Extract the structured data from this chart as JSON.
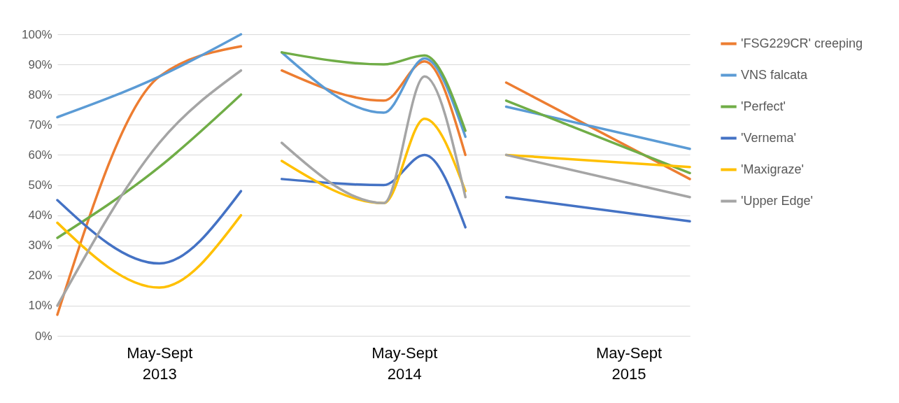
{
  "chart_data": {
    "type": "line",
    "categories": [
      null,
      null,
      null,
      null,
      null,
      "May-Sept 2013",
      null,
      null,
      null,
      null,
      null,
      null,
      null,
      null,
      null,
      null,
      null,
      "May-Sept 2014",
      null,
      null,
      null,
      null,
      null,
      null,
      null,
      null,
      null,
      null,
      "May-Sept 2015",
      null,
      null,
      null
    ],
    "ylim": [
      0,
      100
    ],
    "yticks": [
      {
        "value": 0,
        "label": "0%"
      },
      {
        "value": 10,
        "label": "10%"
      },
      {
        "value": 20,
        "label": "20%"
      },
      {
        "value": 30,
        "label": "30%"
      },
      {
        "value": 40,
        "label": "40%"
      },
      {
        "value": 50,
        "label": "50%"
      },
      {
        "value": 60,
        "label": "60%"
      },
      {
        "value": 70,
        "label": "70%"
      },
      {
        "value": 80,
        "label": "80%"
      },
      {
        "value": 90,
        "label": "90%"
      },
      {
        "value": 100,
        "label": "100%"
      }
    ],
    "grid": "y",
    "legend": "right",
    "line_style": "solid",
    "series": [
      {
        "name": "'FSG229CR' creeping",
        "color": "#ed7d31",
        "values": [
          7,
          null,
          null,
          null,
          null,
          86,
          null,
          null,
          null,
          96,
          null,
          null,
          null,
          null,
          null,
          null,
          null,
          null,
          null,
          null,
          null,
          null,
          null,
          null,
          null,
          null,
          null,
          null,
          null,
          null,
          null,
          null
        ]
      },
      {
        "color": "#ed7d31",
        "values": [
          null,
          null,
          null,
          null,
          null,
          null,
          null,
          null,
          null,
          null,
          null,
          88,
          null,
          null,
          null,
          null,
          78,
          null,
          91,
          null,
          60,
          null,
          null,
          null,
          null,
          null,
          null,
          null,
          null,
          null,
          null,
          null
        ]
      },
      {
        "color": "#ed7d31",
        "values": [
          null,
          null,
          null,
          null,
          null,
          null,
          null,
          null,
          null,
          null,
          null,
          null,
          null,
          null,
          null,
          null,
          null,
          null,
          null,
          null,
          null,
          null,
          84,
          null,
          null,
          null,
          null,
          null,
          null,
          null,
          null,
          52
        ]
      },
      {
        "name": "VNS falcata",
        "color": "#5b9bd5",
        "values": [
          72.5,
          null,
          null,
          null,
          null,
          86,
          null,
          null,
          null,
          100,
          null,
          null,
          null,
          null,
          null,
          null,
          null,
          null,
          null,
          null,
          null,
          null,
          null,
          null,
          null,
          null,
          null,
          null,
          null,
          null,
          null,
          null
        ]
      },
      {
        "color": "#5b9bd5",
        "values": [
          null,
          null,
          null,
          null,
          null,
          null,
          null,
          null,
          null,
          null,
          null,
          94,
          null,
          null,
          null,
          null,
          74,
          null,
          92,
          null,
          66,
          null,
          null,
          null,
          null,
          null,
          null,
          null,
          null,
          null,
          null,
          null
        ]
      },
      {
        "color": "#5b9bd5",
        "values": [
          null,
          null,
          null,
          null,
          null,
          null,
          null,
          null,
          null,
          null,
          null,
          null,
          null,
          null,
          null,
          null,
          null,
          null,
          null,
          null,
          null,
          null,
          76,
          null,
          null,
          null,
          null,
          null,
          null,
          null,
          null,
          62
        ]
      },
      {
        "name": "'Perfect'",
        "color": "#70ad47",
        "values": [
          32.5,
          null,
          null,
          null,
          null,
          56,
          null,
          null,
          null,
          80,
          null,
          null,
          null,
          null,
          null,
          null,
          null,
          null,
          null,
          null,
          null,
          null,
          null,
          null,
          null,
          null,
          null,
          null,
          null,
          null,
          null,
          null
        ]
      },
      {
        "color": "#70ad47",
        "values": [
          null,
          null,
          null,
          null,
          null,
          null,
          null,
          null,
          null,
          null,
          null,
          94,
          null,
          null,
          null,
          null,
          90,
          null,
          93,
          null,
          68,
          null,
          null,
          null,
          null,
          null,
          null,
          null,
          null,
          null,
          null,
          null
        ]
      },
      {
        "color": "#70ad47",
        "values": [
          null,
          null,
          null,
          null,
          null,
          null,
          null,
          null,
          null,
          null,
          null,
          null,
          null,
          null,
          null,
          null,
          null,
          null,
          null,
          null,
          null,
          null,
          78,
          null,
          null,
          null,
          null,
          null,
          null,
          null,
          null,
          54
        ]
      },
      {
        "name": "'Vernema'",
        "color": "#4472c4",
        "values": [
          45,
          null,
          null,
          null,
          null,
          24,
          null,
          null,
          null,
          48,
          null,
          null,
          null,
          null,
          null,
          null,
          null,
          null,
          null,
          null,
          null,
          null,
          null,
          null,
          null,
          null,
          null,
          null,
          null,
          null,
          null,
          null
        ]
      },
      {
        "color": "#4472c4",
        "values": [
          null,
          null,
          null,
          null,
          null,
          null,
          null,
          null,
          null,
          null,
          null,
          52,
          null,
          null,
          null,
          null,
          50,
          null,
          60,
          null,
          36,
          null,
          null,
          null,
          null,
          null,
          null,
          null,
          null,
          null,
          null,
          null
        ]
      },
      {
        "color": "#4472c4",
        "values": [
          null,
          null,
          null,
          null,
          null,
          null,
          null,
          null,
          null,
          null,
          null,
          null,
          null,
          null,
          null,
          null,
          null,
          null,
          null,
          null,
          null,
          null,
          46,
          null,
          null,
          null,
          null,
          null,
          null,
          null,
          null,
          38
        ]
      },
      {
        "name": "'Maxigraze'",
        "color": "#ffc000",
        "values": [
          37.5,
          null,
          null,
          null,
          null,
          16,
          null,
          null,
          null,
          40,
          null,
          null,
          null,
          null,
          null,
          null,
          null,
          null,
          null,
          null,
          null,
          null,
          null,
          null,
          null,
          null,
          null,
          null,
          null,
          null,
          null,
          null
        ]
      },
      {
        "color": "#ffc000",
        "values": [
          null,
          null,
          null,
          null,
          null,
          null,
          null,
          null,
          null,
          null,
          null,
          58,
          null,
          null,
          null,
          null,
          44,
          null,
          72,
          null,
          48,
          null,
          null,
          null,
          null,
          null,
          null,
          null,
          null,
          null,
          null,
          null
        ]
      },
      {
        "color": "#ffc000",
        "values": [
          null,
          null,
          null,
          null,
          null,
          null,
          null,
          null,
          null,
          null,
          null,
          null,
          null,
          null,
          null,
          null,
          null,
          null,
          null,
          null,
          null,
          null,
          60,
          null,
          null,
          null,
          null,
          null,
          null,
          null,
          null,
          56
        ]
      },
      {
        "name": "'Upper Edge'",
        "color": "#a5a5a5",
        "values": [
          10,
          null,
          null,
          null,
          null,
          64,
          null,
          null,
          null,
          88,
          null,
          null,
          null,
          null,
          null,
          null,
          null,
          null,
          null,
          null,
          null,
          null,
          null,
          null,
          null,
          null,
          null,
          null,
          null,
          null,
          null,
          null
        ]
      },
      {
        "color": "#a5a5a5",
        "values": [
          null,
          null,
          null,
          null,
          null,
          null,
          null,
          null,
          null,
          null,
          null,
          64,
          null,
          null,
          null,
          null,
          44,
          null,
          86,
          null,
          46,
          null,
          null,
          null,
          null,
          null,
          null,
          null,
          null,
          null,
          null,
          null
        ]
      },
      {
        "color": "#a5a5a5",
        "values": [
          null,
          null,
          null,
          null,
          null,
          null,
          null,
          null,
          null,
          null,
          null,
          null,
          null,
          null,
          null,
          null,
          null,
          null,
          null,
          null,
          null,
          null,
          60,
          null,
          null,
          null,
          null,
          null,
          null,
          null,
          null,
          46
        ]
      }
    ]
  }
}
